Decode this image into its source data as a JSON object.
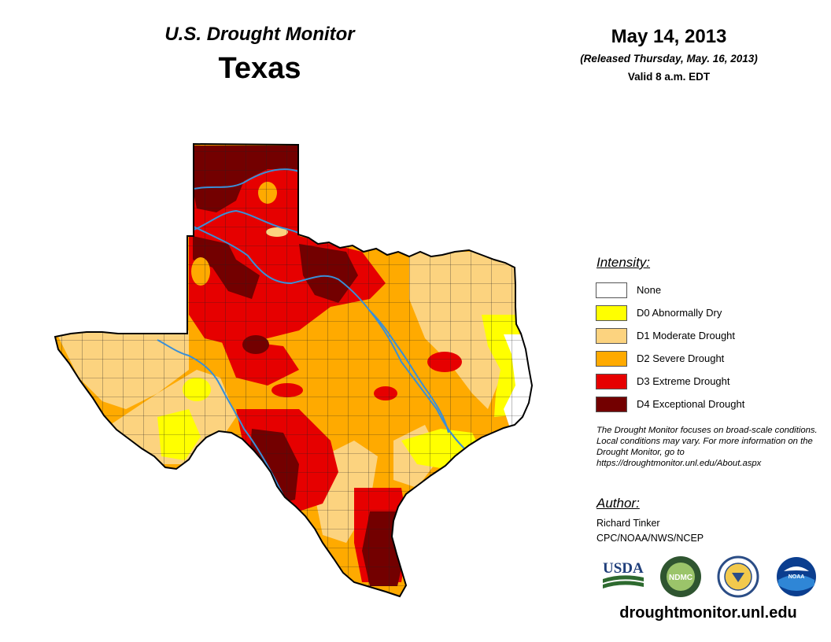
{
  "header": {
    "product_title": "U.S. Drought Monitor",
    "region_title": "Texas",
    "date": "May 14, 2013",
    "released": "(Released Thursday, May. 16, 2013)",
    "valid": "Valid 8 a.m. EDT"
  },
  "legend": {
    "heading": "Intensity:",
    "items": [
      {
        "label": "None",
        "color": "#ffffff"
      },
      {
        "label": "D0 Abnormally Dry",
        "color": "#ffff00"
      },
      {
        "label": "D1 Moderate Drought",
        "color": "#fcd37f"
      },
      {
        "label": "D2 Severe Drought",
        "color": "#ffaa00"
      },
      {
        "label": "D3 Extreme Drought",
        "color": "#e60000"
      },
      {
        "label": "D4 Exceptional Drought",
        "color": "#730000"
      }
    ]
  },
  "note": "The Drought Monitor focuses on broad-scale conditions. Local conditions may vary. For more information on the Drought Monitor, go to https://droughtmonitor.unl.edu/About.aspx",
  "author": {
    "heading": "Author:",
    "name": "Richard Tinker",
    "org": "CPC/NOAA/NWS/NCEP"
  },
  "logos": {
    "usda": "USDA",
    "ndmc": "NDMC",
    "noaa": "NOAA"
  },
  "site_url": "droughtmonitor.unl.edu",
  "map": {
    "river_color": "#3a8fd6",
    "border_color": "#000000",
    "county_line_color": "#222222"
  }
}
